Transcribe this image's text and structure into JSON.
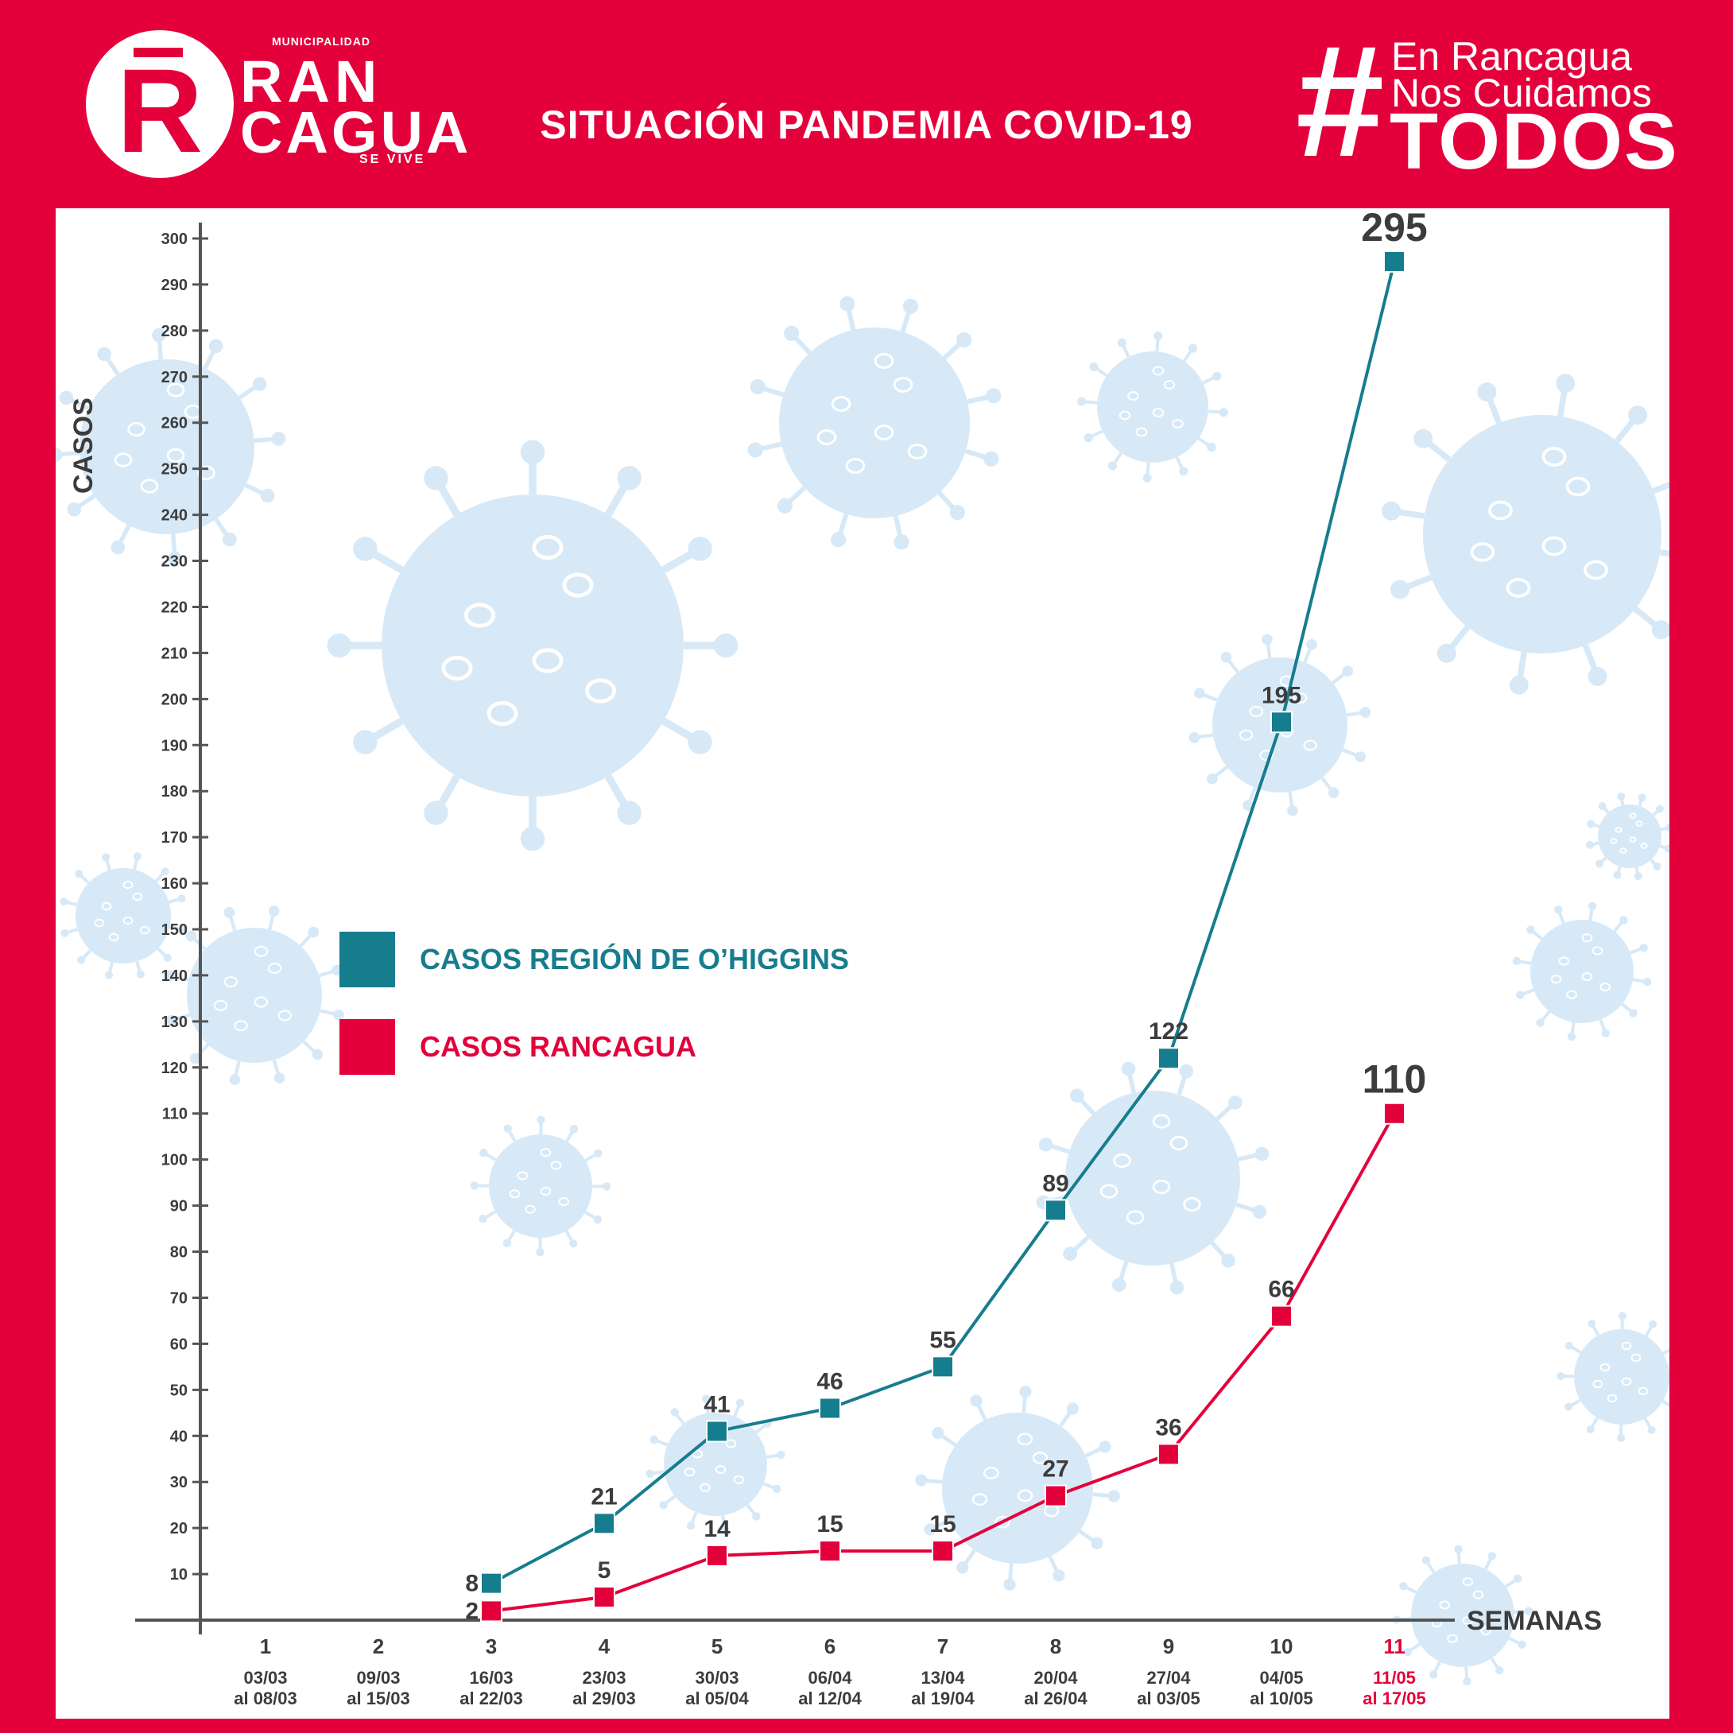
{
  "header": {
    "logo": {
      "municipalidad": "MUNICIPALIDAD",
      "line1": "RAN",
      "line2": "CAGUA",
      "tagline": "SE VIVE",
      "mark": "R"
    },
    "title": "SITUACIÓN PANDEMIA COVID-19",
    "hashtag": {
      "symbol": "#",
      "line1": "En Rancagua",
      "line2": "Nos Cuidamos",
      "line3": "TODOS"
    }
  },
  "colors": {
    "brand_red": "#e4003b",
    "teal": "#167d8e",
    "virus": "#d7e9f7"
  },
  "chart_data": {
    "type": "line",
    "xlabel": "SEMANAS",
    "ylabel": "CASOS",
    "ylim": [
      0,
      300
    ],
    "yticks": [
      10,
      20,
      30,
      40,
      50,
      60,
      70,
      80,
      90,
      100,
      110,
      120,
      130,
      140,
      150,
      160,
      170,
      180,
      190,
      200,
      210,
      220,
      230,
      240,
      250,
      260,
      270,
      280,
      290,
      300
    ],
    "categories": [
      "1",
      "2",
      "3",
      "4",
      "5",
      "6",
      "7",
      "8",
      "9",
      "10",
      "11"
    ],
    "date_ranges": [
      [
        "03/03",
        "al 08/03"
      ],
      [
        "09/03",
        "al 15/03"
      ],
      [
        "16/03",
        "al 22/03"
      ],
      [
        "23/03",
        "al 29/03"
      ],
      [
        "30/03",
        "al 05/04"
      ],
      [
        "06/04",
        "al 12/04"
      ],
      [
        "13/04",
        "al 19/04"
      ],
      [
        "20/04",
        "al 26/04"
      ],
      [
        "27/04",
        "al 03/05"
      ],
      [
        "04/05",
        "al 10/05"
      ],
      [
        "11/05",
        "al 17/05"
      ]
    ],
    "highlight_category": "11",
    "series": [
      {
        "name": "CASOS REGIÓN DE O’HIGGINS",
        "color": "#167d8e",
        "values": [
          null,
          null,
          8,
          21,
          41,
          46,
          55,
          89,
          122,
          195,
          295
        ]
      },
      {
        "name": "CASOS RANCAGUA",
        "color": "#e4003b",
        "values": [
          null,
          null,
          2,
          5,
          14,
          15,
          15,
          27,
          36,
          66,
          110
        ]
      }
    ],
    "legend": "center-left",
    "grid": false
  }
}
